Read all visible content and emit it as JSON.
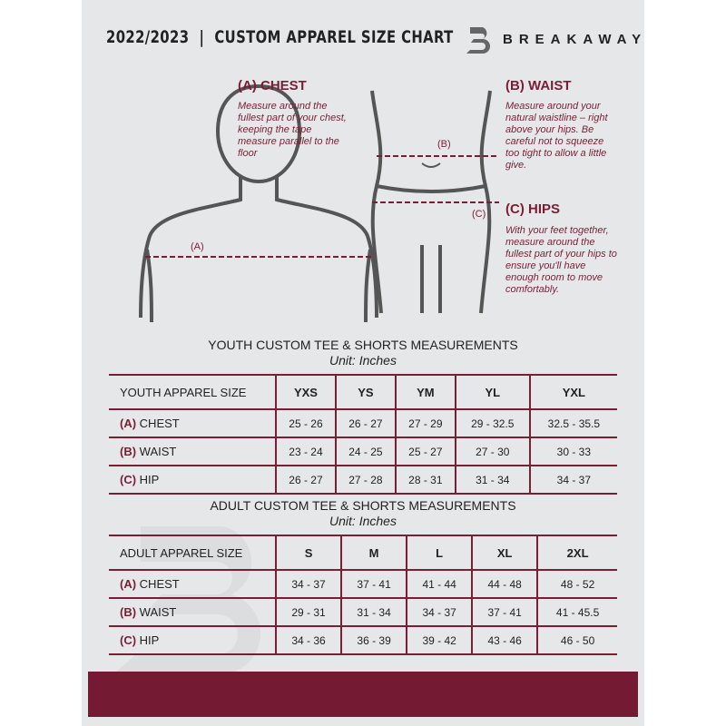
{
  "header": {
    "title": "2022/2023  |  CUSTOM APPAREL SIZE CHART",
    "brand": "BREAKAWAY"
  },
  "guides": {
    "chest": {
      "title": "(A) CHEST",
      "text": "Measure around the fullest part of your chest, keeping the tape measure parallel to the floor",
      "marker": "(A)"
    },
    "waist": {
      "title": "(B) WAIST",
      "text": "Measure around your natural waistline – right above your hips. Be careful not to squeeze too tight to allow a little give.",
      "marker": "(B)"
    },
    "hips": {
      "title": "(C) HIPS",
      "text": "With your feet together, measure around the fullest part of your hips to ensure you'll have enough room to move comfortably.",
      "marker": "(C)"
    }
  },
  "youth": {
    "title": "YOUTH CUSTOM TEE & SHORTS MEASUREMENTS",
    "unit": "Unit: Inches",
    "header": [
      "YOUTH APPAREL SIZE",
      "YXS",
      "YS",
      "YM",
      "YL",
      "YXL"
    ],
    "rows": [
      {
        "code": "(A)",
        "name": "CHEST",
        "values": [
          "25 - 26",
          "26 - 27",
          "27 - 29",
          "29 - 32.5",
          "32.5 - 35.5"
        ]
      },
      {
        "code": "(B)",
        "name": "WAIST",
        "values": [
          "23 - 24",
          "24 - 25",
          "25 - 27",
          "27 - 30",
          "30 - 33"
        ]
      },
      {
        "code": "(C)",
        "name": "HIP",
        "values": [
          "26 - 27",
          "27 - 28",
          "28 - 31",
          "31 - 34",
          "34 - 37"
        ]
      }
    ]
  },
  "adult": {
    "title": "ADULT CUSTOM TEE & SHORTS MEASUREMENTS",
    "unit": "Unit: Inches",
    "header": [
      "ADULT APPAREL SIZE",
      "S",
      "M",
      "L",
      "XL",
      "2XL"
    ],
    "rows": [
      {
        "code": "(A)",
        "name": "CHEST",
        "values": [
          "34 - 37",
          "37 - 41",
          "41 - 44",
          "44 - 48",
          "48 - 52"
        ]
      },
      {
        "code": "(B)",
        "name": "WAIST",
        "values": [
          "29 - 31",
          "31 - 34",
          "34 - 37",
          "37 - 41",
          "41 - 45.5"
        ]
      },
      {
        "code": "(C)",
        "name": "HIP",
        "values": [
          "34 - 36",
          "36 - 39",
          "39 - 42",
          "43 - 46",
          "46 - 50"
        ]
      }
    ]
  },
  "colors": {
    "accent": "#741b33",
    "background": "#e6e7e8"
  }
}
